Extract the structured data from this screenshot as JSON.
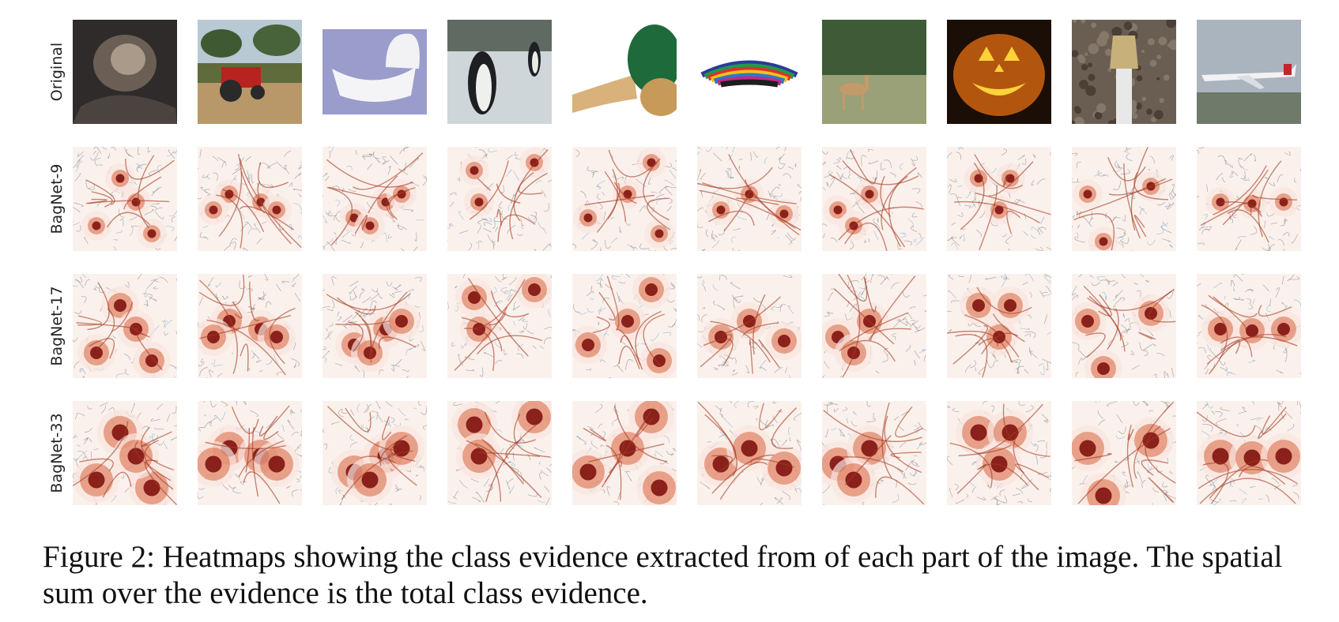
{
  "figure": {
    "caption": "Figure 2: Heatmaps showing the class evidence extracted from of each part of the image. The spatial sum over the evidence is the total class evidence.",
    "rows": [
      "Original",
      "BagNet-9",
      "BagNet-17",
      "BagNet-33"
    ],
    "images": [
      "fox squirrel",
      "tractor",
      "bassinet",
      "penguin",
      "maraca",
      "poncho",
      "gazelle",
      "jack-o-lantern",
      "thimble",
      "airliner"
    ]
  },
  "colors": {
    "background": "#ffffff",
    "heat_low": "#f9e6df",
    "heat_mid": "#d9653f",
    "heat_high": "#7a0a08",
    "contour_blue": "#7fb3d5"
  }
}
